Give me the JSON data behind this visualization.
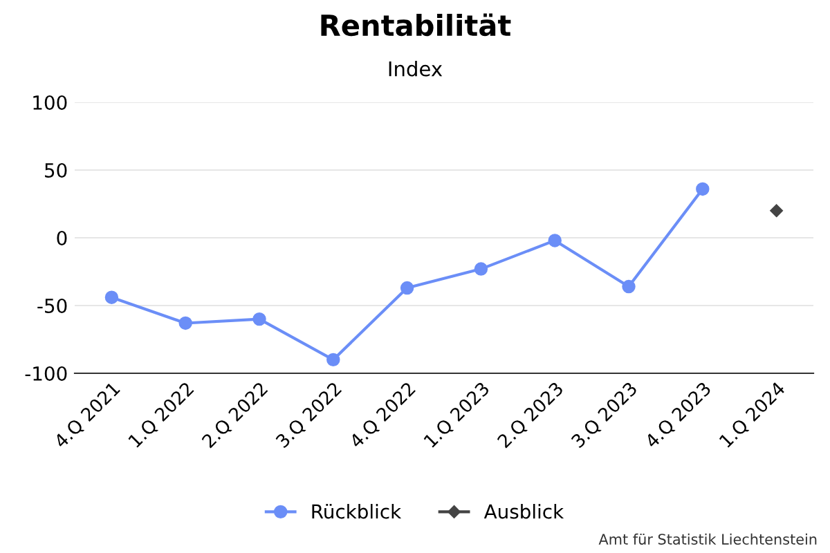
{
  "chart_data": {
    "type": "line",
    "title": "Rentabilität",
    "subtitle": "Index",
    "categories": [
      "4.Q 2021",
      "1.Q 2022",
      "2.Q 2022",
      "3.Q 2022",
      "4.Q 2022",
      "1.Q 2023",
      "2.Q 2023",
      "3.Q 2023",
      "4.Q 2023",
      "1.Q 2024"
    ],
    "series": [
      {
        "name": "Rückblick",
        "color": "#6b8ef7",
        "marker": "circle",
        "values": [
          -44,
          -63,
          -60,
          -90,
          -37,
          -23,
          -2,
          -36,
          36,
          null
        ]
      },
      {
        "name": "Ausblick",
        "color": "#444444",
        "marker": "diamond",
        "values": [
          null,
          null,
          null,
          null,
          null,
          null,
          null,
          null,
          null,
          20
        ]
      }
    ],
    "ylim": [
      -100,
      100
    ],
    "yticks": [
      -100,
      -50,
      0,
      50,
      100
    ],
    "grid": "y",
    "legend": "bottom",
    "annotations": [
      "Amt für Statistik Liechtenstein"
    ]
  }
}
